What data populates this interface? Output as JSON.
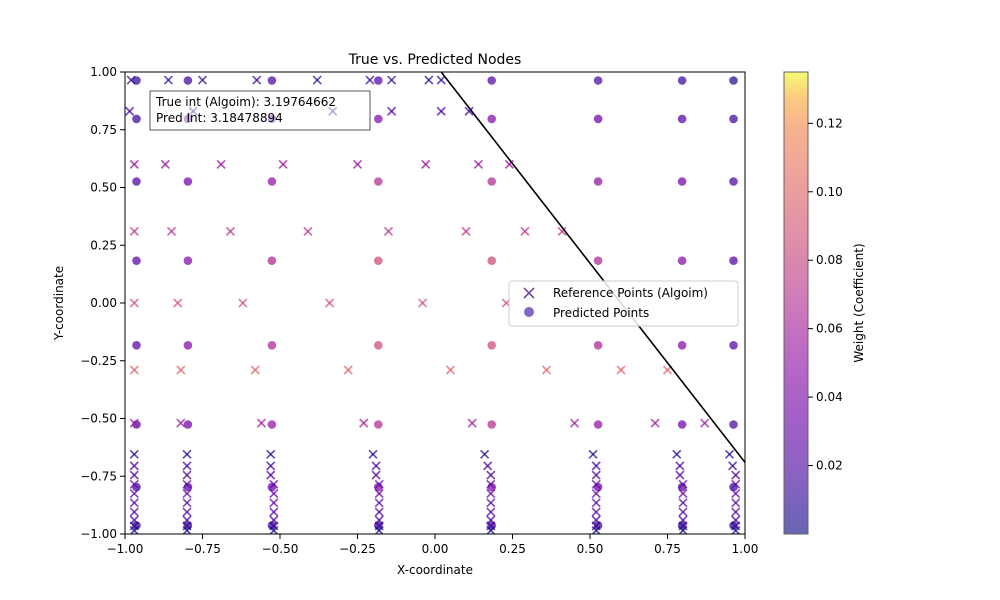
{
  "chart_data": {
    "type": "scatter",
    "title": "True vs. Predicted Nodes",
    "xlabel": "X-coordinate",
    "ylabel": "Y-coordinate",
    "xlim": [
      -1.0,
      1.0
    ],
    "ylim": [
      -1.0,
      1.0
    ],
    "x_ticks": [
      "−1.00",
      "−0.75",
      "−0.50",
      "−0.25",
      "0.00",
      "0.25",
      "0.50",
      "0.75",
      "1.00"
    ],
    "y_ticks": [
      "−1.00",
      "−0.75",
      "−0.50",
      "−0.25",
      "0.00",
      "0.25",
      "0.50",
      "0.75",
      "1.00"
    ],
    "grid": false,
    "legend_position": "center-right",
    "annotation": {
      "line1": "True int (Algoim): 3.19764662",
      "line2": "Pred Int: 3.18478894"
    },
    "colorbar": {
      "label": "Weight (Coefficient)",
      "colormap": "plasma",
      "range": [
        0.0,
        0.135
      ],
      "ticks": [
        "0.02",
        "0.04",
        "0.06",
        "0.08",
        "0.10",
        "0.12"
      ]
    },
    "boundary_line": {
      "x": [
        0.02,
        1.0
      ],
      "y": [
        1.0,
        -0.69
      ],
      "color": "#000000"
    },
    "series": [
      {
        "name": "Reference Points (Algoim)",
        "marker": "x",
        "y_rows": [
          0.965,
          0.83,
          0.6,
          0.31,
          0.0,
          -0.29,
          -0.52,
          -0.655,
          -0.705,
          -0.745,
          -0.785,
          -0.825,
          -0.865,
          -0.905,
          -0.94,
          -0.965,
          -0.985
        ],
        "row_x_values": [
          [
            -0.98,
            -0.86,
            -0.75,
            -0.575,
            -0.38,
            -0.21,
            -0.14,
            -0.02,
            0.02
          ],
          [
            -0.985,
            -0.78,
            -0.33,
            -0.14,
            0.02,
            0.11
          ],
          [
            -0.97,
            -0.87,
            -0.69,
            -0.49,
            -0.25,
            -0.03,
            0.14,
            0.24
          ],
          [
            -0.97,
            -0.85,
            -0.66,
            -0.41,
            -0.15,
            0.1,
            0.29,
            0.41
          ],
          [
            -0.97,
            -0.83,
            -0.62,
            -0.34,
            -0.04,
            0.23
          ],
          [
            -0.97,
            -0.82,
            -0.58,
            -0.28,
            0.05,
            0.36,
            0.6,
            0.75
          ],
          [
            -0.97,
            -0.82,
            -0.56,
            -0.23,
            0.12,
            0.45,
            0.71,
            0.87
          ],
          [
            -0.97,
            -0.8,
            -0.53,
            -0.2,
            0.16,
            0.51,
            0.78,
            0.95
          ],
          [
            -0.97,
            -0.8,
            -0.53,
            -0.19,
            0.17,
            0.52,
            0.79,
            0.96
          ],
          [
            -0.97,
            -0.8,
            -0.53,
            -0.19,
            0.18,
            0.52,
            0.79,
            0.97
          ],
          [
            -0.97,
            -0.8,
            -0.52,
            -0.18,
            0.18,
            0.52,
            0.8,
            0.97
          ],
          [
            -0.97,
            -0.8,
            -0.52,
            -0.18,
            0.18,
            0.52,
            0.8,
            0.97
          ],
          [
            -0.97,
            -0.8,
            -0.52,
            -0.18,
            0.18,
            0.52,
            0.8,
            0.97
          ],
          [
            -0.97,
            -0.8,
            -0.52,
            -0.18,
            0.18,
            0.52,
            0.8,
            0.97
          ],
          [
            -0.97,
            -0.8,
            -0.52,
            -0.18,
            0.18,
            0.52,
            0.8,
            0.97
          ],
          [
            -0.97,
            -0.8,
            -0.52,
            -0.18,
            0.18,
            0.52,
            0.8,
            0.97
          ],
          [
            -0.97,
            -0.8,
            -0.52,
            -0.18,
            0.18,
            0.52,
            0.8,
            0.97
          ]
        ],
        "row_weights": [
          0.012,
          0.02,
          0.055,
          0.075,
          0.09,
          0.1,
          0.06,
          0.006,
          0.02,
          0.025,
          0.03,
          0.03,
          0.028,
          0.025,
          0.02,
          0.012,
          0.006
        ]
      },
      {
        "name": "Predicted Points",
        "marker": "o",
        "x": [
          -0.963,
          -0.797,
          -0.526,
          -0.183,
          0.183,
          0.526,
          0.797,
          0.963
        ],
        "y": [
          0.963,
          0.797,
          0.526,
          0.183,
          -0.183,
          -0.526,
          -0.797,
          -0.963
        ],
        "row_weights": [
          0.012,
          0.025,
          0.04,
          0.05,
          0.05,
          0.04,
          0.025,
          0.012
        ],
        "col_scale": [
          0.02,
          0.04,
          0.06,
          0.08,
          0.08,
          0.06,
          0.04,
          0.02
        ]
      }
    ]
  }
}
